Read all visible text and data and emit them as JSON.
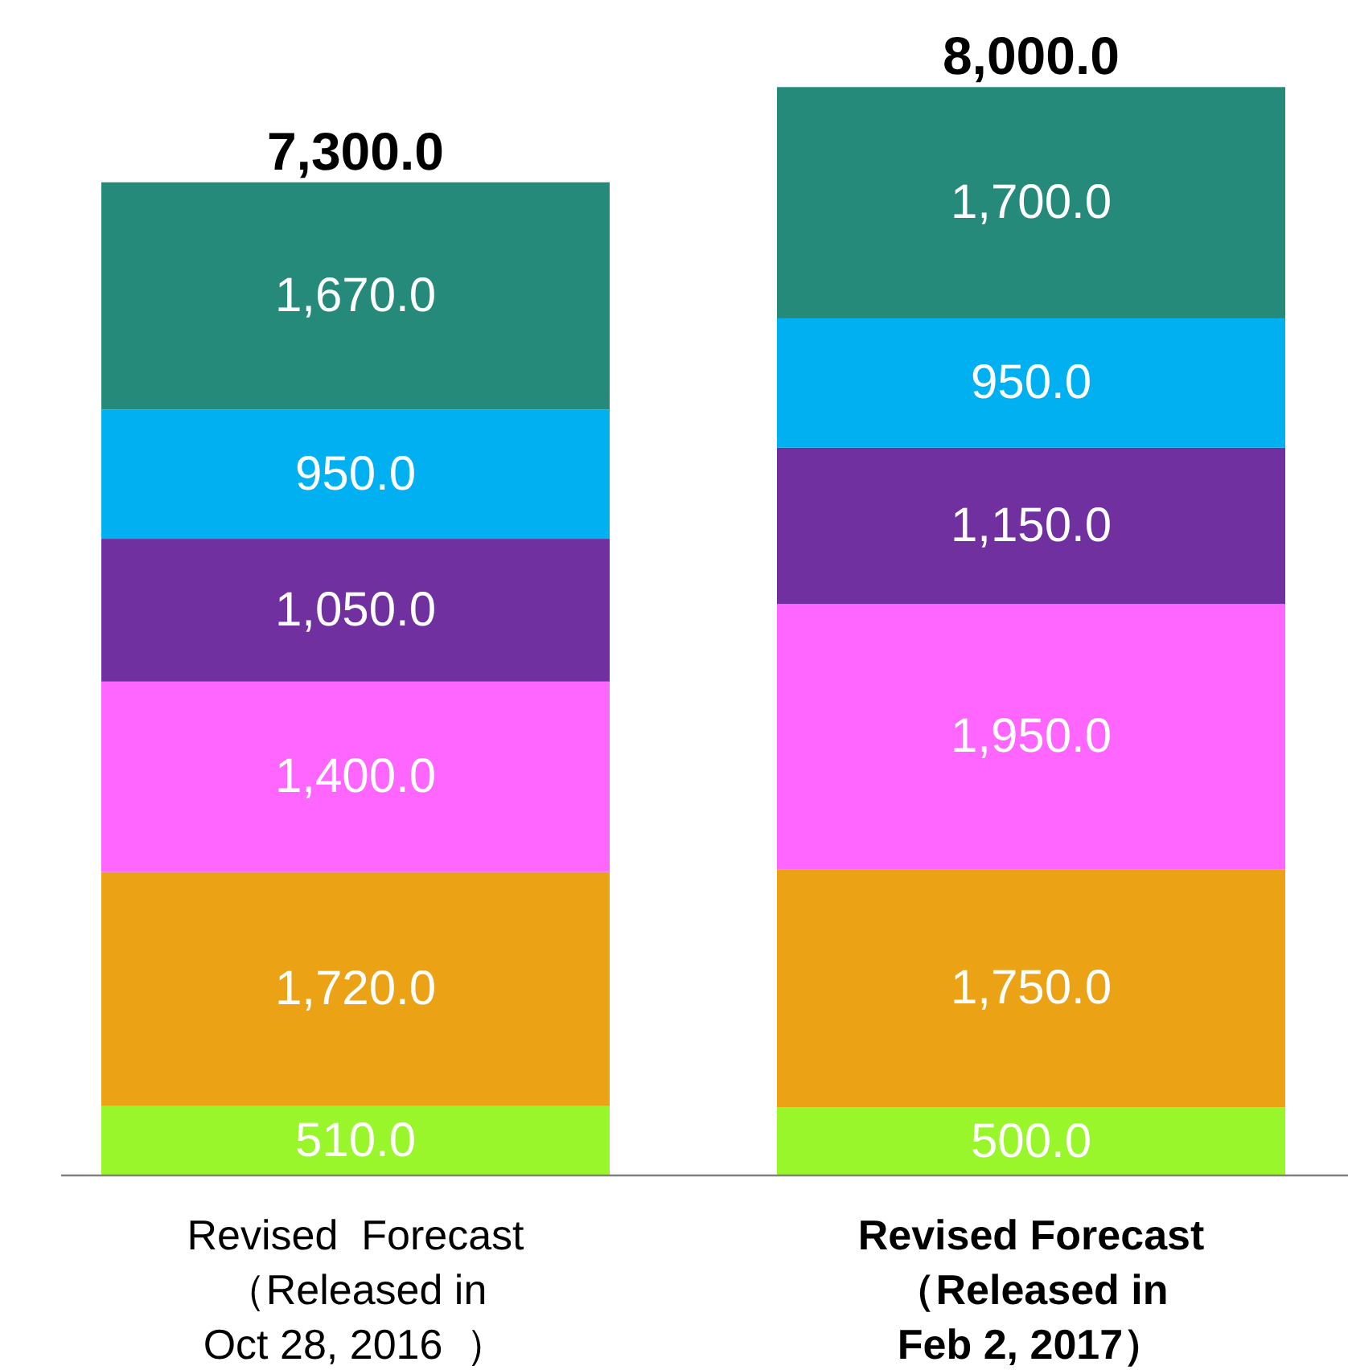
{
  "chart_data": {
    "type": "bar",
    "stacked": true,
    "categories": [
      "Revised  Forecast\n（Released in\nOct 28, 2016  ）",
      "Revised Forecast\n（Released in\nFeb 2, 2017）"
    ],
    "series": [
      {
        "color": "#99f62a",
        "values": [
          510,
          500
        ],
        "value_labels": [
          "510.0",
          "500.0"
        ]
      },
      {
        "color": "#eba315",
        "values": [
          1720,
          1750
        ],
        "value_labels": [
          "1,720.0",
          "1,750.0"
        ]
      },
      {
        "color": "#ff66ff",
        "values": [
          1400,
          1950
        ],
        "value_labels": [
          "1,400.0",
          "1,950.0"
        ]
      },
      {
        "color": "#7030a0",
        "values": [
          1050,
          1150
        ],
        "value_labels": [
          "1,050.0",
          "1,150.0"
        ]
      },
      {
        "color": "#00b0f0",
        "values": [
          950,
          950
        ],
        "value_labels": [
          "950.0",
          "950.0"
        ]
      },
      {
        "color": "#268a7b",
        "values": [
          1670,
          1700
        ],
        "value_labels": [
          "1,670.0",
          "1,700.0"
        ]
      }
    ],
    "totals": [
      "7,300.0",
      "8,000.0"
    ]
  }
}
